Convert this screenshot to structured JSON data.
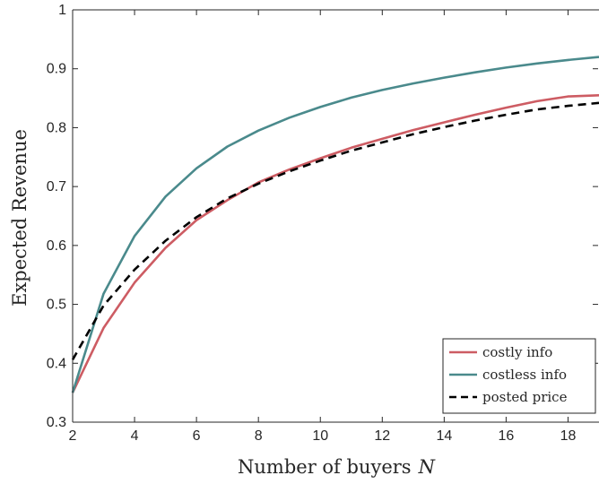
{
  "chart_data": {
    "type": "line",
    "title": "",
    "xlabel": "Number of buyers",
    "xlabel_var": "N",
    "ylabel": "Expected Revenue",
    "xlim": [
      2,
      19
    ],
    "ylim": [
      0.3,
      1
    ],
    "xticks": [
      2,
      4,
      6,
      8,
      10,
      12,
      14,
      16,
      18
    ],
    "yticks": [
      0.3,
      0.4,
      0.5,
      0.6,
      0.7,
      0.8,
      0.9,
      1
    ],
    "ytick_labels": [
      "0.3",
      "0.4",
      "0.5",
      "0.6",
      "0.7",
      "0.8",
      "0.9",
      "1"
    ],
    "grid": false,
    "legend_position": "bottom-right",
    "series": [
      {
        "name": "costly info",
        "color": "#cd5c63",
        "dash": "solid",
        "x": [
          2,
          3,
          4,
          5,
          6,
          7,
          8,
          9,
          10,
          11,
          12,
          13,
          14,
          15,
          16,
          17,
          18,
          19
        ],
        "y": [
          0.35,
          0.46,
          0.537,
          0.596,
          0.643,
          0.677,
          0.707,
          0.729,
          0.748,
          0.766,
          0.781,
          0.796,
          0.809,
          0.822,
          0.834,
          0.845,
          0.853,
          0.855
        ]
      },
      {
        "name": "costless info",
        "color": "#4a8a8c",
        "dash": "solid",
        "x": [
          2,
          3,
          4,
          5,
          6,
          7,
          8,
          9,
          10,
          11,
          12,
          13,
          14,
          15,
          16,
          17,
          18,
          19
        ],
        "y": [
          0.35,
          0.518,
          0.616,
          0.683,
          0.731,
          0.768,
          0.795,
          0.817,
          0.835,
          0.851,
          0.864,
          0.875,
          0.885,
          0.894,
          0.902,
          0.909,
          0.915,
          0.92
        ]
      },
      {
        "name": "posted price",
        "color": "#000000",
        "dash": "dashed",
        "x": [
          2,
          3,
          4,
          5,
          6,
          7,
          8,
          9,
          10,
          11,
          12,
          13,
          14,
          15,
          16,
          17,
          18,
          19
        ],
        "y": [
          0.406,
          0.498,
          0.559,
          0.608,
          0.648,
          0.68,
          0.705,
          0.726,
          0.744,
          0.761,
          0.775,
          0.789,
          0.801,
          0.812,
          0.822,
          0.831,
          0.837,
          0.842
        ]
      }
    ]
  }
}
